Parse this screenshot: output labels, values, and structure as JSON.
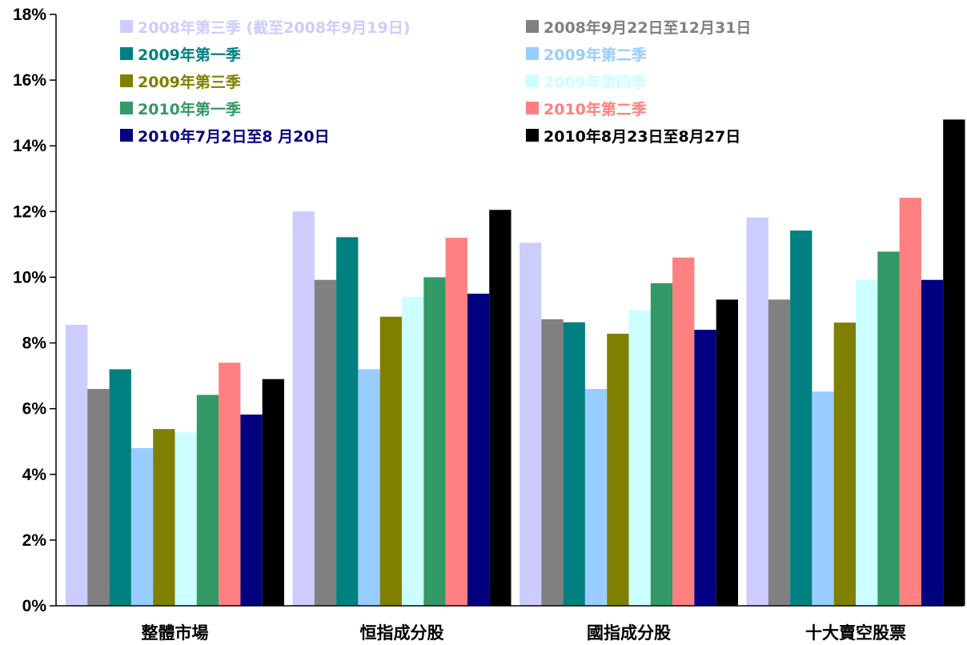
{
  "chart_data": {
    "type": "bar",
    "title": "",
    "xlabel": "",
    "ylabel": "",
    "ylim": [
      0,
      18
    ],
    "y_ticks": [
      "0%",
      "2%",
      "4%",
      "6%",
      "8%",
      "10%",
      "12%",
      "14%",
      "16%",
      "18%"
    ],
    "grid": false,
    "legend_position": "top",
    "categories": [
      "整體市場",
      "恒指成分股",
      "國指成分股",
      "十大賣空股票"
    ],
    "series": [
      {
        "name": "2008年第三季 (截至2008年9月19日)",
        "color": "#ccccff",
        "values": [
          8.55,
          12.0,
          11.05,
          11.82
        ]
      },
      {
        "name": "2008年9月22日至12月31日",
        "color": "#808080",
        "values": [
          6.6,
          9.92,
          8.72,
          9.32
        ]
      },
      {
        "name": "2009年第一季",
        "color": "#008080",
        "values": [
          7.2,
          11.22,
          8.63,
          11.42
        ]
      },
      {
        "name": "2009年第二季",
        "color": "#99ccff",
        "values": [
          4.8,
          7.2,
          6.6,
          6.52
        ]
      },
      {
        "name": "2009年第三季",
        "color": "#808000",
        "values": [
          5.38,
          8.8,
          8.28,
          8.62
        ]
      },
      {
        "name": "2009年第四季",
        "color": "#ccffff",
        "values": [
          5.28,
          9.4,
          9.0,
          9.92
        ]
      },
      {
        "name": "2010年第一季",
        "color": "#339966",
        "values": [
          6.42,
          10.0,
          9.82,
          10.78
        ]
      },
      {
        "name": "2010年第二季",
        "color": "#ff8080",
        "values": [
          7.4,
          11.2,
          10.6,
          12.42
        ]
      },
      {
        "name": "2010年7月2日至8 月20日",
        "color": "#000080",
        "values": [
          5.82,
          9.5,
          8.4,
          9.92
        ]
      },
      {
        "name": "2010年8月23日至8月27日",
        "color": "#000000",
        "values": [
          6.9,
          12.05,
          9.32,
          14.8
        ]
      }
    ]
  }
}
